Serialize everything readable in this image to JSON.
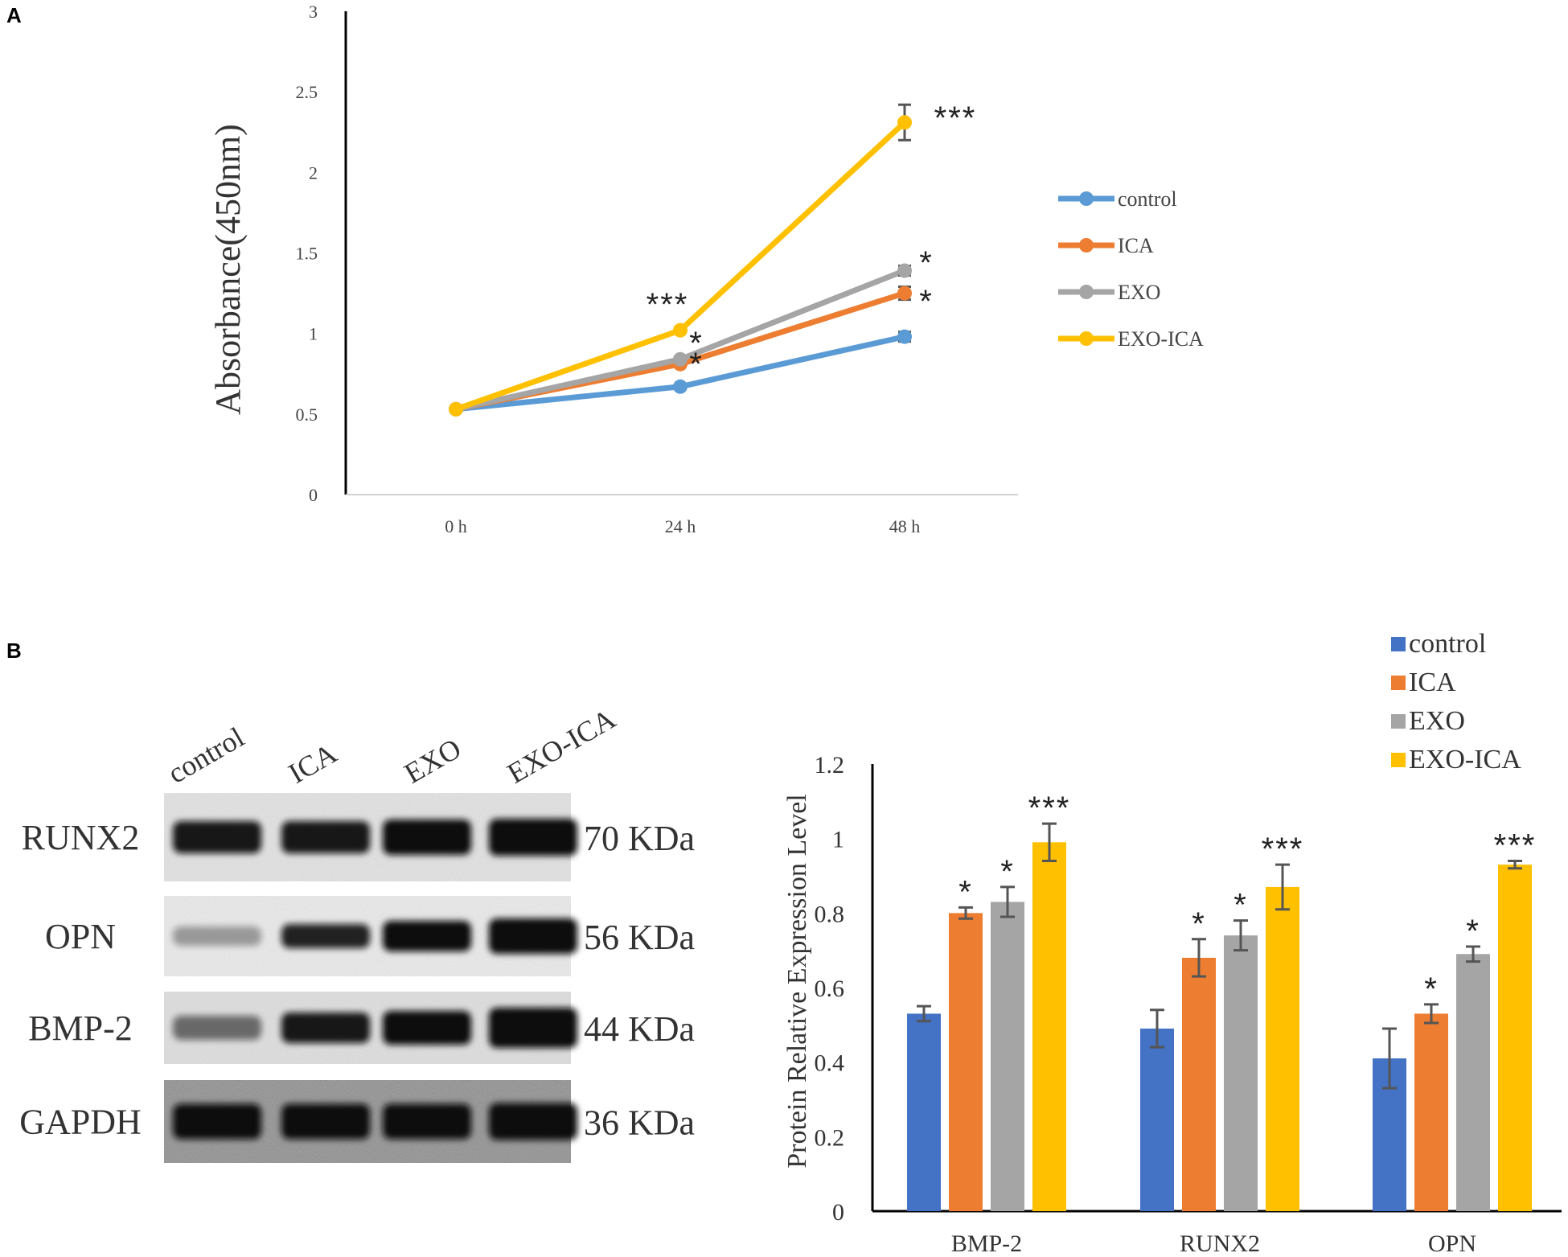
{
  "panels": {
    "a": "A",
    "b": "B"
  },
  "colors": {
    "control": "#5b9bd5",
    "ica": "#ed7d31",
    "exo": "#a5a5a5",
    "exo_ica": "#ffc000",
    "control_bar": "#4472c4",
    "ica_bar": "#ed7d31",
    "exo_bar": "#a5a5a5",
    "exo_ica_bar": "#ffc000"
  },
  "blot": {
    "lanes": [
      "control",
      "ICA",
      "EXO",
      "EXO-ICA"
    ],
    "rows": [
      {
        "protein": "RUNX2",
        "size": "70 KDa"
      },
      {
        "protein": "OPN",
        "size": "56 KDa"
      },
      {
        "protein": "BMP-2",
        "size": "44 KDa"
      },
      {
        "protein": "GAPDH",
        "size": "36 KDa"
      }
    ]
  },
  "chart_data": [
    {
      "type": "line",
      "ylabel": "Absorbance(450nm)",
      "xlabel": "",
      "x": [
        "0 h",
        "24 h",
        "48 h"
      ],
      "ylim": [
        0,
        3
      ],
      "yticks": [
        "0",
        "0.5",
        "1",
        "1.5",
        "2",
        "2.5",
        "3"
      ],
      "legend_position": "right",
      "series": [
        {
          "name": "control",
          "values": [
            0.53,
            0.67,
            0.98
          ],
          "errors": [
            0,
            0,
            0.03
          ],
          "sig": [
            "",
            "",
            ""
          ]
        },
        {
          "name": "ICA",
          "values": [
            0.53,
            0.81,
            1.25
          ],
          "errors": [
            0,
            0,
            0.04
          ],
          "sig": [
            "",
            "*",
            "*"
          ]
        },
        {
          "name": "EXO",
          "values": [
            0.53,
            0.84,
            1.39
          ],
          "errors": [
            0,
            0,
            0.03
          ],
          "sig": [
            "",
            "*",
            "*"
          ]
        },
        {
          "name": "EXO-ICA",
          "values": [
            0.53,
            1.02,
            2.31
          ],
          "errors": [
            0,
            0,
            0.11
          ],
          "sig": [
            "",
            "***",
            "***"
          ]
        }
      ]
    },
    {
      "type": "bar",
      "ylabel": "Protein Relative Expression Level",
      "xlabel": "",
      "categories": [
        "BMP-2",
        "RUNX2",
        "OPN"
      ],
      "ylim": [
        0,
        1.2
      ],
      "yticks": [
        "0",
        "0.2",
        "0.4",
        "0.6",
        "0.8",
        "1",
        "1.2"
      ],
      "legend_position": "top-right",
      "series": [
        {
          "name": "control",
          "values": [
            0.53,
            0.49,
            0.41
          ],
          "errors": [
            0.02,
            0.05,
            0.08
          ],
          "sig": [
            "",
            "",
            ""
          ]
        },
        {
          "name": "ICA",
          "values": [
            0.8,
            0.68,
            0.53
          ],
          "errors": [
            0.015,
            0.05,
            0.025
          ],
          "sig": [
            "*",
            "*",
            "*"
          ]
        },
        {
          "name": "EXO",
          "values": [
            0.83,
            0.74,
            0.69
          ],
          "errors": [
            0.04,
            0.04,
            0.02
          ],
          "sig": [
            "*",
            "*",
            "*"
          ]
        },
        {
          "name": "EXO-ICA",
          "values": [
            0.99,
            0.87,
            0.93
          ],
          "errors": [
            0.05,
            0.06,
            0.01
          ],
          "sig": [
            "***",
            "***",
            "***"
          ]
        }
      ]
    }
  ]
}
